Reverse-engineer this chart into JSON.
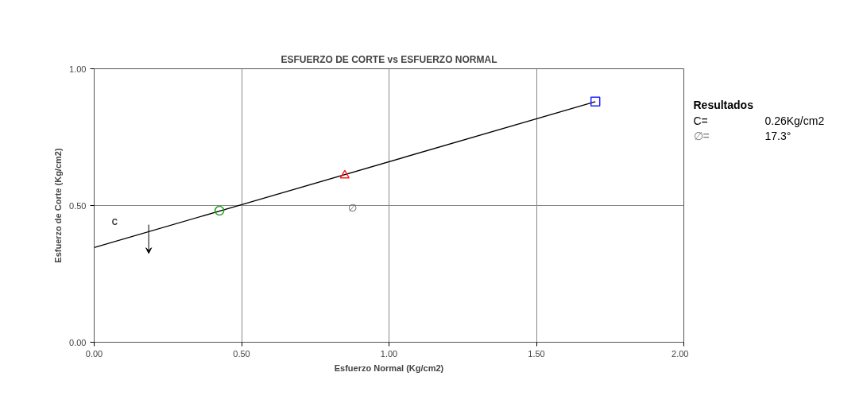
{
  "chart_data": {
    "type": "scatter",
    "title": "ESFUERZO DE CORTE vs ESFUERZO NORMAL",
    "xlabel": "Esfuerzo Normal (Kg/cm2)",
    "ylabel": "Esfuerzo de Corte (Kg/cm2)",
    "xlim": [
      0,
      2
    ],
    "ylim": [
      0,
      1
    ],
    "xticks": [
      {
        "value": 0,
        "label": "0.00"
      },
      {
        "value": 0.5,
        "label": "0.50"
      },
      {
        "value": 1,
        "label": "1.00"
      },
      {
        "value": 1.5,
        "label": "1.50"
      },
      {
        "value": 2,
        "label": "2.00"
      }
    ],
    "yticks": [
      {
        "value": 0,
        "label": "0.00"
      },
      {
        "value": 0.5,
        "label": "0.50"
      },
      {
        "value": 1,
        "label": "1.00"
      }
    ],
    "grid": true,
    "series": [
      {
        "type": "line",
        "color": "#000000",
        "x": [
          0,
          1.7
        ],
        "values": [
          0.346,
          0.88
        ],
        "marker": "none"
      },
      {
        "type": "scatter",
        "color": "#22a022",
        "x": [
          0.425
        ],
        "values": [
          0.481
        ],
        "marker": "circle"
      },
      {
        "type": "scatter",
        "color": "#ff2020",
        "x": [
          0.85
        ],
        "values": [
          0.61
        ],
        "marker": "triangle"
      },
      {
        "type": "scatter",
        "color": "#2020ff",
        "x": [
          1.7
        ],
        "values": [
          0.88
        ],
        "marker": "square"
      }
    ],
    "annotations": [
      "C",
      "∅",
      "Resultados",
      "C=",
      "0.26Kg/cm2",
      "∅=",
      "17.3°"
    ]
  }
}
